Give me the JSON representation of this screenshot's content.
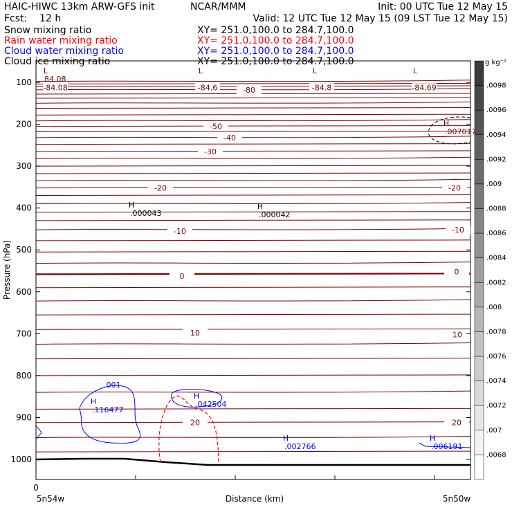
{
  "header": {
    "model": "HAIC-HIWC 13km ARW-GFS init",
    "center": "NCAR/MMM",
    "init": "Init: 00 UTC Tue 12 May 15",
    "fcst": "Fcst:    12 h",
    "valid": "Valid: 12 UTC Tue 12 May 15 (09 LST Tue 12 May 15)",
    "rows": [
      {
        "field": "Snow mixing ratio",
        "xy": "XY= 251.0,100.0 to 284.7,100.0",
        "color": "#000000"
      },
      {
        "field": "Rain water mixing ratio",
        "xy": "XY= 251.0,100.0 to 284.7,100.0",
        "color": "#ff0000"
      },
      {
        "field": "Cloud water mixing ratio",
        "xy": "XY= 251.0,100.0 to 284.7,100.0",
        "color": "#0000ff"
      },
      {
        "field": "Cloud ice mixing ratio",
        "xy": "XY= 251.0,100.0 to 284.7,100.0",
        "color": "#000000"
      }
    ]
  },
  "chart_data": {
    "type": "line",
    "ylabel": "Pressure (hPa)",
    "xlabel": "Distance (km)",
    "ylim": [
      1050,
      50
    ],
    "yticks": [
      100,
      200,
      300,
      400,
      500,
      600,
      700,
      800,
      900,
      1000
    ],
    "xtick_labels": {
      "left_value": "0",
      "left_lon": "5n54w",
      "right_lon": "5n50w"
    },
    "temperature_contours": [
      {
        "label": "-84.08",
        "p": 112
      },
      {
        "label": "-84.6",
        "p": 112
      },
      {
        "label": "-80",
        "p": 118
      },
      {
        "label": "-84.8",
        "p": 112
      },
      {
        "label": "-84.69",
        "p": 112
      },
      {
        "label": "-50",
        "p": 205
      },
      {
        "label": "-40",
        "p": 232
      },
      {
        "label": "-30",
        "p": 265
      },
      {
        "label": "-20",
        "p": 352
      },
      {
        "label": "-20",
        "p": 352
      },
      {
        "label": "-10",
        "p": 455
      },
      {
        "label": "-10",
        "p": 452
      },
      {
        "label": "0",
        "p": 562
      },
      {
        "label": "0",
        "p": 552
      },
      {
        "label": "10",
        "p": 698
      },
      {
        "label": "10",
        "p": 702
      },
      {
        "label": "20",
        "p": 912
      },
      {
        "label": "20",
        "p": 912
      }
    ],
    "extrema": [
      {
        "mark": "L",
        "value": "84.08"
      },
      {
        "mark": "L",
        "value": ""
      },
      {
        "mark": "L",
        "value": ""
      },
      {
        "mark": "L",
        "value": ""
      },
      {
        "mark": "H",
        "value": ".007017"
      },
      {
        "mark": "H",
        "value": ".000043"
      },
      {
        "mark": "H",
        "value": ".000042"
      },
      {
        "mark": "H",
        "value": ".116477"
      },
      {
        "mark": "H",
        "value": ".042504"
      },
      {
        "mark": "H",
        "value": ".002766"
      },
      {
        "mark": "H",
        "value": ".006191"
      }
    ],
    "cloud_water_labels": [
      ".001"
    ],
    "colorbar": {
      "units": "g kg⁻¹",
      "labels": [
        ".0098",
        ".0096",
        ".0094",
        ".0092",
        ".009",
        ".0088",
        ".0086",
        ".0084",
        ".0082",
        ".008",
        ".0078",
        ".0076",
        ".0074",
        ".0072",
        ".007",
        ".0068"
      ]
    },
    "colors": {
      "temperature": "#800000",
      "rain": "#ff0000",
      "cloud_water": "#0000ff",
      "terrain": "#000000"
    }
  }
}
